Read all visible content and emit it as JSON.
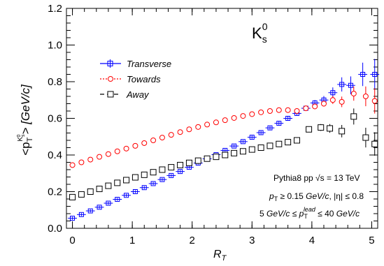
{
  "chart_data": {
    "type": "scatter",
    "title": "K",
    "title_sub": "s",
    "title_sup": "0",
    "xlabel": "R",
    "xlabel_sub": "T",
    "ylabel": "<p_T^{K_s^0}> [GeV/c]",
    "ylabel_parts": {
      "open": "<p",
      "sub": "T",
      "sup_main": "K",
      "sup_sub": "s",
      "sup_sup": "0",
      "close": "> [GeV/c]"
    },
    "xlim": [
      -0.1,
      5.1
    ],
    "ylim": [
      0.0,
      1.2
    ],
    "x_ticks": [
      0,
      1,
      2,
      3,
      4,
      5
    ],
    "x_tick_labels": [
      "0",
      "1",
      "2",
      "3",
      "4",
      "5"
    ],
    "y_ticks": [
      0.0,
      0.2,
      0.4,
      0.6,
      0.8,
      1.0,
      1.2
    ],
    "y_tick_labels": [
      "0.0",
      "0.2",
      "0.4",
      "0.6",
      "0.8",
      "1.0",
      "1.2"
    ],
    "grid": false,
    "legend_position": "upper-left",
    "series": [
      {
        "name": "Transverse",
        "color": "#0000ff",
        "marker": "open-cross",
        "x": [
          0.0,
          0.15,
          0.3,
          0.45,
          0.6,
          0.75,
          0.9,
          1.05,
          1.2,
          1.35,
          1.5,
          1.65,
          1.8,
          1.95,
          2.1,
          2.25,
          2.4,
          2.55,
          2.7,
          2.85,
          3.0,
          3.15,
          3.3,
          3.45,
          3.6,
          3.75,
          3.9,
          4.05,
          4.2,
          4.35,
          4.5,
          4.65,
          4.85,
          5.05
        ],
        "y": [
          0.055,
          0.075,
          0.095,
          0.115,
          0.137,
          0.158,
          0.18,
          0.2,
          0.222,
          0.244,
          0.266,
          0.288,
          0.31,
          0.333,
          0.356,
          0.379,
          0.402,
          0.425,
          0.449,
          0.473,
          0.497,
          0.522,
          0.548,
          0.573,
          0.6,
          0.627,
          0.655,
          0.684,
          0.7,
          0.74,
          0.785,
          0.78,
          0.84,
          0.84
        ],
        "yerr": [
          0.004,
          0.004,
          0.004,
          0.004,
          0.004,
          0.004,
          0.004,
          0.004,
          0.004,
          0.004,
          0.004,
          0.004,
          0.004,
          0.004,
          0.004,
          0.004,
          0.004,
          0.004,
          0.004,
          0.004,
          0.005,
          0.005,
          0.005,
          0.006,
          0.006,
          0.007,
          0.008,
          0.012,
          0.018,
          0.025,
          0.035,
          0.045,
          0.06,
          0.08
        ]
      },
      {
        "name": "Towards",
        "color": "#ff0000",
        "marker": "open-circle",
        "x": [
          0.0,
          0.15,
          0.3,
          0.45,
          0.6,
          0.75,
          0.9,
          1.05,
          1.2,
          1.35,
          1.5,
          1.65,
          1.8,
          1.95,
          2.1,
          2.25,
          2.4,
          2.55,
          2.7,
          2.85,
          3.0,
          3.15,
          3.3,
          3.45,
          3.6,
          3.75,
          3.9,
          4.05,
          4.2,
          4.35,
          4.5,
          4.7,
          4.9,
          5.05
        ],
        "y": [
          0.345,
          0.36,
          0.375,
          0.39,
          0.405,
          0.42,
          0.435,
          0.45,
          0.465,
          0.48,
          0.495,
          0.51,
          0.525,
          0.54,
          0.553,
          0.566,
          0.578,
          0.59,
          0.602,
          0.613,
          0.623,
          0.633,
          0.64,
          0.645,
          0.645,
          0.64,
          0.655,
          0.665,
          0.68,
          0.7,
          0.69,
          0.735,
          0.72,
          0.695
        ],
        "yerr": [
          0.003,
          0.003,
          0.003,
          0.003,
          0.003,
          0.003,
          0.003,
          0.003,
          0.003,
          0.003,
          0.003,
          0.003,
          0.003,
          0.003,
          0.003,
          0.003,
          0.003,
          0.003,
          0.003,
          0.003,
          0.003,
          0.003,
          0.003,
          0.004,
          0.004,
          0.004,
          0.006,
          0.008,
          0.012,
          0.018,
          0.025,
          0.035,
          0.05,
          0.065
        ]
      },
      {
        "name": "Away",
        "color": "#000000",
        "marker": "open-square",
        "x": [
          0.0,
          0.15,
          0.3,
          0.45,
          0.6,
          0.75,
          0.9,
          1.05,
          1.2,
          1.35,
          1.5,
          1.65,
          1.8,
          1.95,
          2.1,
          2.25,
          2.4,
          2.55,
          2.7,
          2.85,
          3.0,
          3.15,
          3.3,
          3.45,
          3.6,
          3.75,
          3.95,
          4.15,
          4.3,
          4.5,
          4.7,
          4.9,
          5.05
        ],
        "y": [
          0.17,
          0.185,
          0.2,
          0.215,
          0.232,
          0.248,
          0.263,
          0.278,
          0.292,
          0.306,
          0.32,
          0.333,
          0.345,
          0.357,
          0.369,
          0.38,
          0.39,
          0.4,
          0.41,
          0.42,
          0.43,
          0.44,
          0.45,
          0.46,
          0.47,
          0.48,
          0.54,
          0.55,
          0.545,
          0.53,
          0.61,
          0.495,
          0.46
        ],
        "yerr": [
          0.003,
          0.003,
          0.003,
          0.003,
          0.003,
          0.003,
          0.003,
          0.003,
          0.003,
          0.003,
          0.003,
          0.003,
          0.003,
          0.003,
          0.003,
          0.003,
          0.003,
          0.003,
          0.003,
          0.003,
          0.003,
          0.003,
          0.004,
          0.004,
          0.005,
          0.006,
          0.01,
          0.015,
          0.02,
          0.03,
          0.04,
          0.05,
          0.06
        ]
      }
    ],
    "annotations": {
      "line1": "Pythia8 pp √s = 13 TeV",
      "line2_a": "p",
      "line2_sub": "T",
      "line2_b": " ≥ 0.15 ",
      "line2_unit": "GeV/c",
      "line2_c": ", |η| ≤ 0.8",
      "line3_a": "5 ",
      "line3_unit1": "GeV/c",
      "line3_b": " ≤  p",
      "line3_sub": "T",
      "line3_sup": "lead",
      "line3_c": " ≤ 40 ",
      "line3_unit2": "GeV/c"
    }
  }
}
